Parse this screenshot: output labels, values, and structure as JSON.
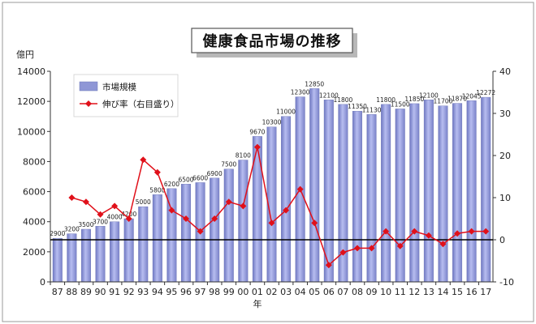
{
  "chart_data": {
    "type": "bar",
    "title": "健康食品市場の推移",
    "xlabel": "年",
    "ylabel_left": "億円",
    "ylim_left": [
      0,
      14000
    ],
    "yticks_left": [
      0,
      2000,
      4000,
      6000,
      8000,
      10000,
      12000,
      14000
    ],
    "ylim_right": [
      -10,
      40
    ],
    "yticks_right": [
      -10,
      0,
      10,
      20,
      30,
      40
    ],
    "categories": [
      "87",
      "88",
      "89",
      "90",
      "91",
      "92",
      "93",
      "94",
      "95",
      "96",
      "97",
      "98",
      "99",
      "00",
      "01",
      "02",
      "03",
      "04",
      "05",
      "06",
      "07",
      "08",
      "09",
      "10",
      "11",
      "12",
      "13",
      "14",
      "15",
      "16",
      "17"
    ],
    "series": [
      {
        "name": "市場規模",
        "type": "bar",
        "axis": "left",
        "color": "#8f97d6",
        "values": [
          2900,
          3200,
          3500,
          3700,
          4000,
          4200,
          5000,
          5800,
          6200,
          6500,
          6600,
          6900,
          7500,
          8100,
          9670,
          10300,
          11000,
          12300,
          12850,
          12100,
          11800,
          11350,
          11130,
          11800,
          11500,
          11850,
          12100,
          11700,
          11870,
          12045,
          12272
        ],
        "labels": [
          "2900",
          "3200",
          "3500",
          "3700",
          "4000",
          "4200",
          "5000",
          "5800",
          "6200",
          "6500",
          "6600",
          "6900",
          "7500",
          "8100",
          "9670",
          "10300",
          "11000",
          "12300",
          "12850",
          "12100",
          "11800",
          "11350",
          "11130",
          "11800",
          "11500",
          "11850",
          "12100",
          "11700",
          "11870",
          "12045",
          "12272"
        ]
      },
      {
        "name": "伸び率（右目盛り）",
        "type": "line",
        "axis": "right",
        "color": "#e0101a",
        "values": [
          null,
          10,
          9,
          6,
          8,
          5,
          19,
          16,
          7,
          5,
          2,
          5,
          9,
          8,
          22,
          4,
          7,
          12,
          4,
          -6,
          -3,
          -2,
          -2,
          2,
          -1.5,
          2,
          1,
          -1,
          1.5,
          2,
          2
        ]
      }
    ],
    "reference_line": {
      "axis": "right",
      "value": 0
    },
    "legend_position": "top-left",
    "grid": false
  }
}
